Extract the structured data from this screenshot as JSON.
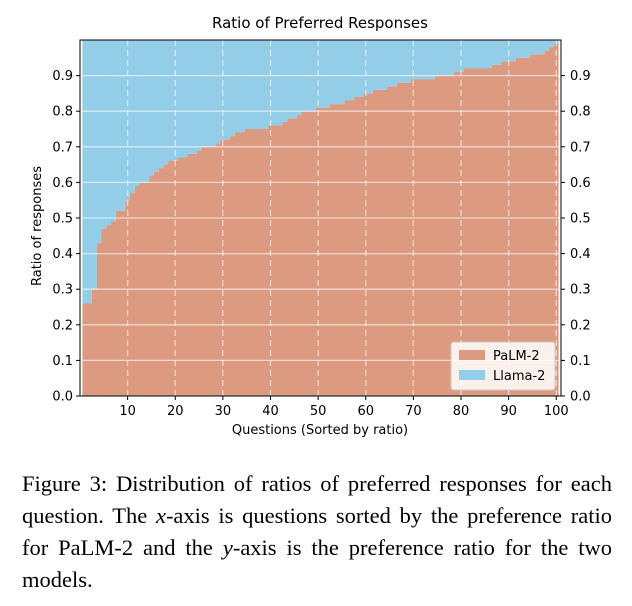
{
  "chart_data": {
    "type": "area",
    "title": "Ratio of Preferred Responses",
    "xlabel": "Questions (Sorted by ratio)",
    "ylabel": "Ratio of responses",
    "xlim": [
      0,
      101
    ],
    "ylim": [
      0,
      1.0
    ],
    "x_ticks": [
      10,
      20,
      30,
      40,
      50,
      60,
      70,
      80,
      90,
      100
    ],
    "x_tick_labels": [
      "10",
      "20",
      "30",
      "40",
      "50",
      "60",
      "70",
      "80",
      "90",
      "100"
    ],
    "y_ticks": [
      0.0,
      0.1,
      0.2,
      0.3,
      0.4,
      0.5,
      0.6,
      0.7,
      0.8,
      0.9
    ],
    "y_tick_labels": [
      "0.0",
      "0.1",
      "0.2",
      "0.3",
      "0.4",
      "0.5",
      "0.6",
      "0.7",
      "0.8",
      "0.9"
    ],
    "grid": true,
    "legend_position": "lower-right",
    "stacked": true,
    "x": [
      1,
      2,
      3,
      4,
      5,
      6,
      7,
      8,
      9,
      10,
      11,
      12,
      13,
      14,
      15,
      16,
      17,
      18,
      19,
      20,
      21,
      22,
      23,
      24,
      25,
      26,
      27,
      28,
      29,
      30,
      31,
      32,
      33,
      34,
      35,
      36,
      37,
      38,
      39,
      40,
      41,
      42,
      43,
      44,
      45,
      46,
      47,
      48,
      49,
      50,
      51,
      52,
      53,
      54,
      55,
      56,
      57,
      58,
      59,
      60,
      61,
      62,
      63,
      64,
      65,
      66,
      67,
      68,
      69,
      70,
      71,
      72,
      73,
      74,
      75,
      76,
      77,
      78,
      79,
      80,
      81,
      82,
      83,
      84,
      85,
      86,
      87,
      88,
      89,
      90,
      91,
      92,
      93,
      94,
      95,
      96,
      97,
      98,
      99,
      100
    ],
    "series": [
      {
        "name": "PaLM-2",
        "color": "#dc9a80",
        "values": [
          0.26,
          0.26,
          0.3,
          0.43,
          0.47,
          0.48,
          0.49,
          0.52,
          0.52,
          0.55,
          0.57,
          0.59,
          0.6,
          0.6,
          0.62,
          0.63,
          0.64,
          0.65,
          0.66,
          0.66,
          0.67,
          0.67,
          0.68,
          0.68,
          0.69,
          0.7,
          0.7,
          0.7,
          0.71,
          0.72,
          0.72,
          0.73,
          0.74,
          0.74,
          0.75,
          0.75,
          0.75,
          0.75,
          0.75,
          0.76,
          0.76,
          0.76,
          0.77,
          0.78,
          0.78,
          0.79,
          0.8,
          0.8,
          0.8,
          0.81,
          0.81,
          0.81,
          0.82,
          0.82,
          0.82,
          0.83,
          0.83,
          0.84,
          0.84,
          0.85,
          0.85,
          0.86,
          0.86,
          0.86,
          0.87,
          0.87,
          0.88,
          0.88,
          0.88,
          0.89,
          0.89,
          0.89,
          0.89,
          0.89,
          0.9,
          0.9,
          0.9,
          0.9,
          0.91,
          0.91,
          0.92,
          0.92,
          0.92,
          0.92,
          0.92,
          0.92,
          0.93,
          0.93,
          0.94,
          0.94,
          0.94,
          0.95,
          0.95,
          0.95,
          0.96,
          0.96,
          0.96,
          0.97,
          0.98,
          0.99
        ]
      },
      {
        "name": "Llama-2",
        "color": "#94cde8",
        "values": [
          0.74,
          0.74,
          0.7,
          0.57,
          0.53,
          0.52,
          0.51,
          0.48,
          0.48,
          0.45,
          0.43,
          0.41,
          0.4,
          0.4,
          0.38,
          0.37,
          0.36,
          0.35,
          0.34,
          0.34,
          0.33,
          0.33,
          0.32,
          0.32,
          0.31,
          0.3,
          0.3,
          0.3,
          0.29,
          0.28,
          0.28,
          0.27,
          0.26,
          0.26,
          0.25,
          0.25,
          0.25,
          0.25,
          0.25,
          0.24,
          0.24,
          0.24,
          0.23,
          0.22,
          0.22,
          0.21,
          0.2,
          0.2,
          0.2,
          0.19,
          0.19,
          0.19,
          0.18,
          0.18,
          0.18,
          0.17,
          0.17,
          0.16,
          0.16,
          0.15,
          0.15,
          0.14,
          0.14,
          0.14,
          0.13,
          0.13,
          0.12,
          0.12,
          0.12,
          0.11,
          0.11,
          0.11,
          0.11,
          0.11,
          0.1,
          0.1,
          0.1,
          0.1,
          0.09,
          0.09,
          0.08,
          0.08,
          0.08,
          0.08,
          0.08,
          0.08,
          0.07,
          0.07,
          0.06,
          0.06,
          0.06,
          0.05,
          0.05,
          0.05,
          0.04,
          0.04,
          0.04,
          0.03,
          0.02,
          0.01
        ]
      }
    ]
  },
  "caption": {
    "label": "Figure 3:",
    "text_1": " Distribution of ratios of preferred responses for each question. The ",
    "x_symbol": "x",
    "text_2": "-axis is questions sorted by the preference ratio for PaLM-2 and the ",
    "y_symbol": "y",
    "text_3": "-axis is the preference ratio for the two models."
  }
}
